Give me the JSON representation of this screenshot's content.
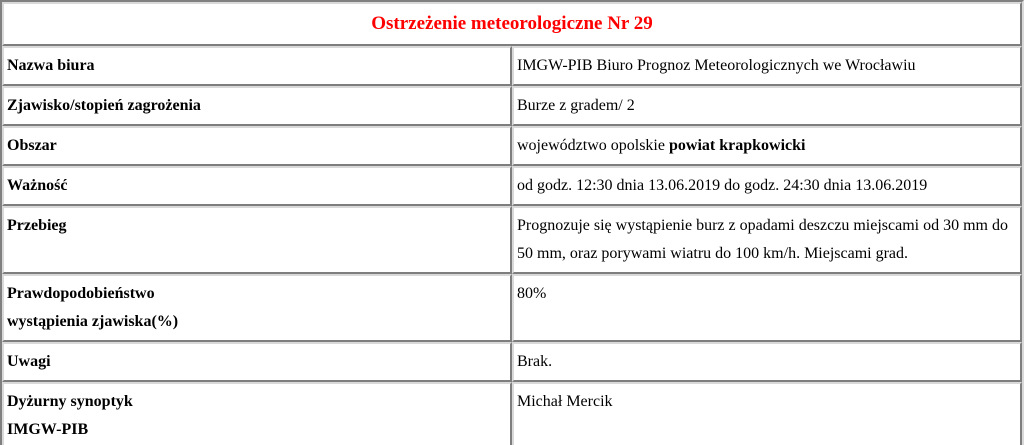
{
  "page": {
    "background": "#ffffff",
    "text_color": "#000000",
    "border_dark": "#7e7e7e",
    "border_light": "#d9d9d9"
  },
  "header": {
    "title": "Ostrzeżenie meteorologiczne Nr 29",
    "title_color": "#ff0000"
  },
  "table": {
    "rows": [
      {
        "label": "Nazwa biura",
        "value_parts": [
          {
            "text": "IMGW-PIB Biuro Prognoz Meteorologicznych we Wrocławiu",
            "bold": false
          }
        ]
      },
      {
        "label": "Zjawisko/stopień zagrożenia",
        "value_parts": [
          {
            "text": "Burze z gradem/ 2",
            "bold": false
          }
        ]
      },
      {
        "label": "Obszar",
        "value_parts": [
          {
            "text": "województwo opolskie ",
            "bold": false
          },
          {
            "text": "powiat krapkowicki",
            "bold": true
          }
        ]
      },
      {
        "label": "Ważność",
        "value_parts": [
          {
            "text": "od godz. 12:30 dnia 13.06.2019 do godz. 24:30 dnia 13.06.2019",
            "bold": false
          }
        ]
      },
      {
        "label": "Przebieg",
        "value_parts": [
          {
            "text": "Prognozuje się wystąpienie burz z opadami deszczu miejscami od 30 mm do 50 mm, oraz porywami wiatru do 100 km/h. Miejscami grad.",
            "bold": false
          }
        ]
      },
      {
        "label": "Prawdopodobieństwo\nwystąpienia zjawiska(%)",
        "value_parts": [
          {
            "text": "80%",
            "bold": false
          }
        ]
      },
      {
        "label": "Uwagi",
        "value_parts": [
          {
            "text": "Brak.",
            "bold": false
          }
        ]
      },
      {
        "label": "Dyżurny synoptyk\nIMGW-PIB",
        "value_parts": [
          {
            "text": "Michał Mercik",
            "bold": false
          }
        ]
      }
    ]
  }
}
